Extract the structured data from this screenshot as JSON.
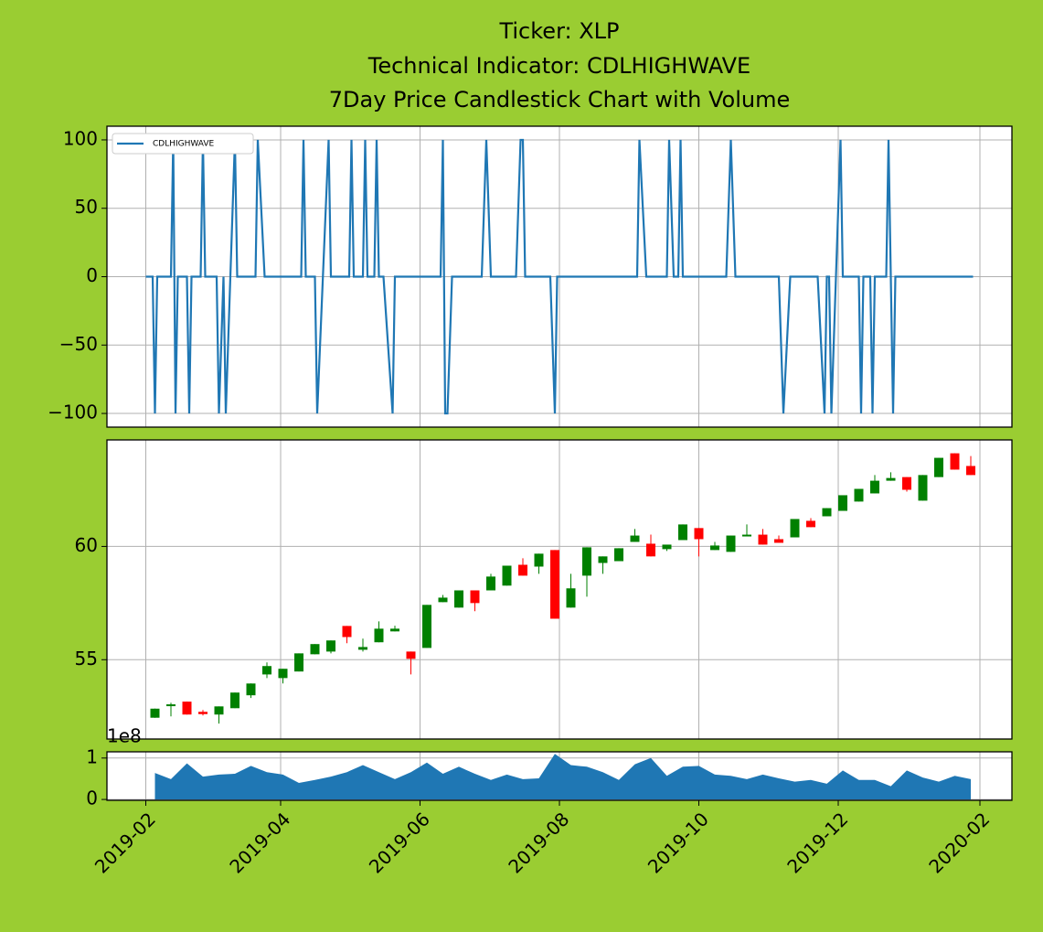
{
  "chart_data": [
    {
      "type": "line",
      "title": [
        "Ticker: XLP",
        "Technical Indicator: CDLHIGHWAVE",
        "7Day Price Candlestick Chart with Volume"
      ],
      "x": [
        "2019-02-01",
        "2019-02-04",
        "2019-02-05",
        "2019-02-06",
        "2019-02-12",
        "2019-02-13",
        "2019-02-14",
        "2019-02-15",
        "2019-02-19",
        "2019-02-20",
        "2019-02-21",
        "2019-02-25",
        "2019-02-26",
        "2019-02-27",
        "2019-03-04",
        "2019-03-05",
        "2019-03-07",
        "2019-03-08",
        "2019-03-12",
        "2019-03-13",
        "2019-03-21",
        "2019-03-22",
        "2019-03-25",
        "2019-04-10",
        "2019-04-11",
        "2019-04-12",
        "2019-04-16",
        "2019-04-17",
        "2019-04-22",
        "2019-04-23",
        "2019-05-01",
        "2019-05-02",
        "2019-05-03",
        "2019-05-07",
        "2019-05-08",
        "2019-05-09",
        "2019-05-12",
        "2019-05-13",
        "2019-05-14",
        "2019-05-16",
        "2019-05-20",
        "2019-05-21",
        "2019-06-10",
        "2019-06-11",
        "2019-06-12",
        "2019-06-13",
        "2019-06-15",
        "2019-06-28",
        "2019-06-30",
        "2019-07-02",
        "2019-07-13",
        "2019-07-15",
        "2019-07-16",
        "2019-07-17",
        "2019-07-28",
        "2019-07-30",
        "2019-07-31",
        "2019-09-04",
        "2019-09-05",
        "2019-09-08",
        "2019-09-17",
        "2019-09-18",
        "2019-09-20",
        "2019-09-22",
        "2019-09-23",
        "2019-09-24",
        "2019-10-13",
        "2019-10-15",
        "2019-10-17",
        "2019-11-05",
        "2019-11-07",
        "2019-11-10",
        "2019-11-22",
        "2019-11-25",
        "2019-11-26",
        "2019-11-27",
        "2019-11-28",
        "2019-12-02",
        "2019-12-03",
        "2019-12-10",
        "2019-12-11",
        "2019-12-12",
        "2019-12-15",
        "2019-12-16",
        "2019-12-17",
        "2019-12-22",
        "2019-12-23",
        "2019-12-25",
        "2019-12-26",
        "2020-01-29"
      ],
      "series": [
        {
          "name": "CDLHIGHWAVE",
          "color": "#1f77b4",
          "values": [
            0,
            0,
            -100,
            0,
            0,
            100,
            -100,
            0,
            0,
            -100,
            0,
            0,
            100,
            0,
            0,
            -100,
            0,
            -100,
            100,
            0,
            0,
            100,
            0,
            0,
            100,
            0,
            0,
            -100,
            100,
            0,
            0,
            100,
            0,
            0,
            100,
            0,
            0,
            100,
            0,
            0,
            -100,
            0,
            0,
            100,
            -100,
            -100,
            0,
            0,
            100,
            0,
            0,
            100,
            100,
            0,
            0,
            -100,
            0,
            0,
            100,
            0,
            0,
            100,
            0,
            0,
            100,
            0,
            0,
            100,
            0,
            0,
            -100,
            0,
            0,
            -100,
            0,
            0,
            -100,
            100,
            0,
            0,
            -100,
            0,
            0,
            -100,
            0,
            0,
            100,
            -100,
            0,
            0
          ]
        }
      ],
      "ylim": [
        -110,
        110
      ],
      "yticks": [
        {
          "value": -100,
          "label": "−100"
        },
        {
          "value": -50,
          "label": "−50"
        },
        0,
        50,
        100
      ],
      "grid": true,
      "legend": "upper left"
    },
    {
      "type": "candlestick",
      "x": [
        "2019-02-05",
        "2019-02-12",
        "2019-02-19",
        "2019-02-26",
        "2019-03-05",
        "2019-03-12",
        "2019-03-19",
        "2019-03-26",
        "2019-04-02",
        "2019-04-09",
        "2019-04-16",
        "2019-04-23",
        "2019-04-30",
        "2019-05-07",
        "2019-05-14",
        "2019-05-21",
        "2019-05-28",
        "2019-06-04",
        "2019-06-11",
        "2019-06-18",
        "2019-06-25",
        "2019-07-02",
        "2019-07-09",
        "2019-07-16",
        "2019-07-23",
        "2019-07-30",
        "2019-08-06",
        "2019-08-13",
        "2019-08-20",
        "2019-08-27",
        "2019-09-03",
        "2019-09-10",
        "2019-09-17",
        "2019-09-24",
        "2019-10-01",
        "2019-10-08",
        "2019-10-15",
        "2019-10-22",
        "2019-10-29",
        "2019-11-05",
        "2019-11-12",
        "2019-11-19",
        "2019-11-26",
        "2019-12-03",
        "2019-12-10",
        "2019-12-17",
        "2019-12-24",
        "2019-12-31",
        "2020-01-07",
        "2020-01-14",
        "2020-01-21",
        "2020-01-28"
      ],
      "open": [
        52.44,
        52.95,
        53.15,
        52.7,
        52.58,
        52.86,
        53.43,
        54.35,
        54.19,
        54.48,
        55.24,
        55.36,
        56.49,
        55.44,
        55.77,
        56.25,
        55.36,
        55.52,
        57.54,
        57.3,
        58.06,
        58.06,
        58.27,
        59.19,
        59.11,
        59.84,
        57.3,
        58.71,
        59.27,
        59.35,
        60.2,
        60.12,
        59.88,
        60.28,
        60.81,
        59.84,
        59.76,
        60.44,
        60.52,
        60.32,
        60.4,
        61.13,
        61.33,
        61.57,
        61.98,
        62.34,
        62.9,
        63.06,
        62.02,
        63.06,
        64.11,
        63.55
      ],
      "high": [
        52.84,
        53.1,
        53.15,
        52.78,
        52.94,
        53.55,
        53.95,
        54.88,
        54.6,
        55.28,
        55.69,
        55.85,
        56.49,
        55.93,
        56.69,
        56.5,
        55.36,
        57.42,
        57.86,
        58.06,
        58.06,
        58.79,
        59.15,
        59.48,
        59.68,
        59.84,
        58.79,
        59.96,
        59.56,
        59.92,
        60.77,
        60.52,
        60.08,
        60.97,
        60.81,
        60.2,
        60.48,
        60.97,
        60.77,
        60.48,
        61.21,
        61.25,
        61.69,
        62.26,
        62.54,
        63.15,
        63.27,
        63.06,
        63.15,
        63.91,
        64.11,
        63.99
      ],
      "low": [
        52.44,
        52.5,
        52.58,
        52.54,
        52.18,
        52.86,
        53.31,
        54.19,
        53.95,
        54.48,
        55.24,
        55.28,
        55.73,
        55.36,
        55.77,
        56.25,
        54.35,
        55.52,
        57.54,
        57.3,
        57.14,
        58.06,
        58.27,
        58.71,
        58.79,
        56.81,
        57.3,
        57.78,
        58.79,
        59.35,
        60.2,
        59.56,
        59.8,
        60.28,
        59.56,
        59.84,
        59.76,
        60.44,
        60.08,
        60.16,
        60.4,
        60.85,
        61.33,
        61.57,
        61.98,
        62.34,
        62.9,
        62.42,
        62.02,
        63.06,
        63.39,
        63.15
      ],
      "close": [
        52.84,
        53.03,
        52.58,
        52.6,
        52.94,
        53.55,
        53.95,
        54.72,
        54.6,
        55.28,
        55.69,
        55.85,
        56.0,
        55.56,
        56.37,
        56.37,
        55.04,
        57.42,
        57.74,
        58.06,
        57.5,
        58.67,
        59.15,
        58.71,
        59.68,
        56.81,
        58.15,
        59.96,
        59.56,
        59.92,
        60.48,
        59.56,
        60.08,
        60.97,
        60.32,
        60.04,
        60.48,
        60.52,
        60.08,
        60.16,
        61.21,
        60.85,
        61.69,
        62.26,
        62.54,
        62.9,
        63.02,
        62.5,
        63.15,
        63.91,
        63.39,
        63.15
      ],
      "up_color": "green",
      "down_color": "red",
      "ylim": [
        51.5,
        64.7
      ],
      "yticks": [
        55,
        60
      ],
      "grid": true
    },
    {
      "type": "area",
      "color": "#1f77b4",
      "x": [
        "2019-02-05",
        "2019-02-12",
        "2019-02-19",
        "2019-02-26",
        "2019-03-05",
        "2019-03-12",
        "2019-03-19",
        "2019-03-26",
        "2019-04-02",
        "2019-04-09",
        "2019-04-16",
        "2019-04-23",
        "2019-04-30",
        "2019-05-07",
        "2019-05-14",
        "2019-05-21",
        "2019-05-28",
        "2019-06-04",
        "2019-06-11",
        "2019-06-18",
        "2019-06-25",
        "2019-07-02",
        "2019-07-09",
        "2019-07-16",
        "2019-07-23",
        "2019-07-30",
        "2019-08-06",
        "2019-08-13",
        "2019-08-20",
        "2019-08-27",
        "2019-09-03",
        "2019-09-10",
        "2019-09-17",
        "2019-09-24",
        "2019-10-01",
        "2019-10-08",
        "2019-10-15",
        "2019-10-22",
        "2019-10-29",
        "2019-11-05",
        "2019-11-12",
        "2019-11-19",
        "2019-11-26",
        "2019-12-03",
        "2019-12-10",
        "2019-12-17",
        "2019-12-24",
        "2019-12-31",
        "2020-01-07",
        "2020-01-14",
        "2020-01-21",
        "2020-01-28"
      ],
      "values": [
        0.64,
        0.49,
        0.87,
        0.55,
        0.6,
        0.62,
        0.81,
        0.66,
        0.6,
        0.4,
        0.47,
        0.55,
        0.66,
        0.83,
        0.66,
        0.49,
        0.66,
        0.89,
        0.62,
        0.79,
        0.62,
        0.47,
        0.6,
        0.49,
        0.51,
        1.1,
        0.83,
        0.79,
        0.66,
        0.47,
        0.85,
        1.0,
        0.57,
        0.79,
        0.81,
        0.6,
        0.57,
        0.49,
        0.6,
        0.51,
        0.43,
        0.47,
        0.38,
        0.7,
        0.47,
        0.47,
        0.32,
        0.7,
        0.53,
        0.43,
        0.57,
        0.49
      ],
      "ylim": [
        -0.02,
        1.15
      ],
      "yticks": [
        0,
        1
      ],
      "y_offset_label": "1e8",
      "xlim": [
        "2019-01-15",
        "2020-02-15"
      ],
      "xticks": [
        "2019-02",
        "2019-04",
        "2019-06",
        "2019-08",
        "2019-10",
        "2019-12",
        "2020-02"
      ],
      "grid": true
    }
  ]
}
